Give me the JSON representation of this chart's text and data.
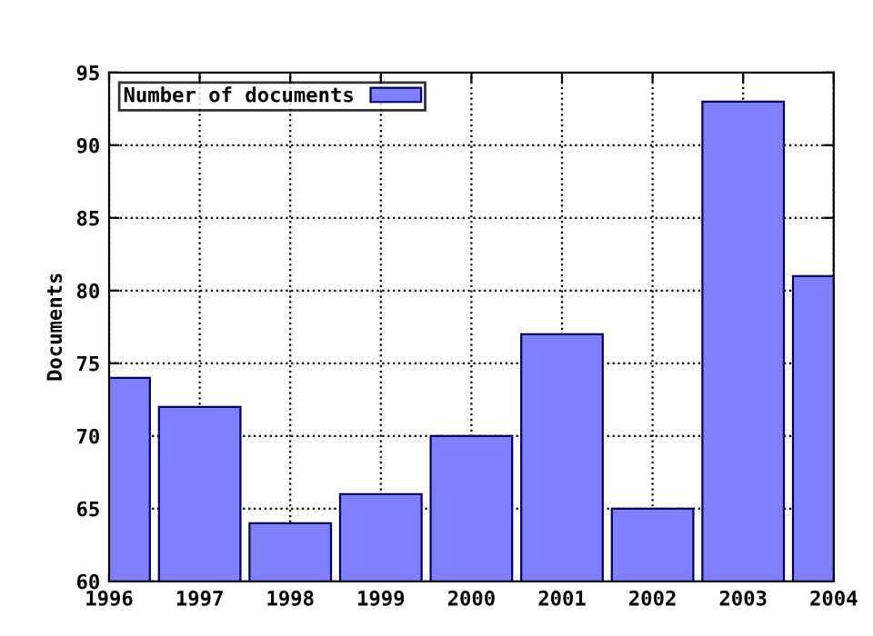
{
  "chart_data": {
    "type": "bar",
    "ylabel": "Documents",
    "x": [
      1996,
      1997,
      1998,
      1999,
      2000,
      2001,
      2002,
      2003,
      2004
    ],
    "series": [
      {
        "name": "Number of documents",
        "color": "#8080ff",
        "values": [
          74,
          72,
          64,
          66,
          70,
          77,
          65,
          93,
          81
        ]
      }
    ],
    "xlim": [
      1996,
      2004
    ],
    "xticks": [
      1996,
      1997,
      1998,
      1999,
      2000,
      2001,
      2002,
      2003,
      2004
    ],
    "ylim": [
      60,
      95
    ],
    "yticks": [
      60,
      65,
      70,
      75,
      80,
      85,
      90,
      95
    ],
    "grid": true,
    "legend": "top left",
    "line_style": "dotted"
  }
}
